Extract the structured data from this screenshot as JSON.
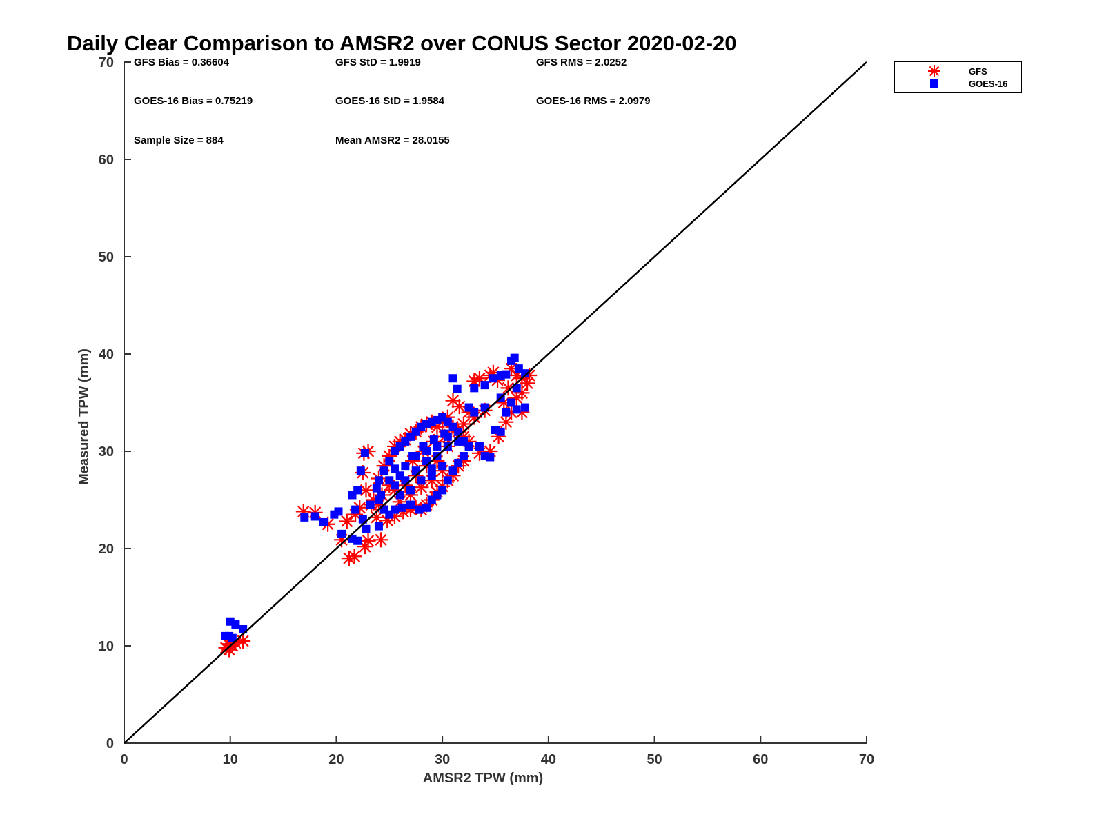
{
  "chart_data": {
    "type": "scatter",
    "title": "Daily Clear Comparison to AMSR2 over CONUS Sector 2020-02-20",
    "xlabel": "AMSR2 TPW (mm)",
    "ylabel": "Measured TPW (mm)",
    "xlim": [
      0,
      70
    ],
    "ylim": [
      0,
      70
    ],
    "xticks": [
      "0",
      "10",
      "20",
      "30",
      "40",
      "50",
      "60",
      "70"
    ],
    "yticks": [
      "0",
      "10",
      "20",
      "30",
      "40",
      "50",
      "60",
      "70"
    ],
    "grid": false,
    "legend_position": "outside-top-right",
    "reference_line": {
      "x": [
        0,
        70
      ],
      "y": [
        0,
        70
      ],
      "color": "#000000"
    },
    "annotations": {
      "gfs_bias": "GFS Bias = 0.36604",
      "gfs_std": "GFS StD = 1.9919",
      "gfs_rms": "GFS RMS = 2.0252",
      "goes_bias": "GOES-16 Bias = 0.75219",
      "goes_std": "GOES-16 StD = 1.9584",
      "goes_rms": "GOES-16 RMS = 2.0979",
      "sample_size": "Sample Size = 884",
      "mean_amsr2": "Mean AMSR2 = 28.0155"
    },
    "series": [
      {
        "name": "GFS",
        "marker": "asterisk",
        "color": "#ff0000",
        "points": [
          [
            9.6,
            9.8
          ],
          [
            9.9,
            9.6
          ],
          [
            10.2,
            10.0
          ],
          [
            10.5,
            10.3
          ],
          [
            11.2,
            10.5
          ],
          [
            9.8,
            10.2
          ],
          [
            16.9,
            23.8
          ],
          [
            18.0,
            23.7
          ],
          [
            19.2,
            22.5
          ],
          [
            20.5,
            20.9
          ],
          [
            21.2,
            19.0
          ],
          [
            21.7,
            19.2
          ],
          [
            22.7,
            20.2
          ],
          [
            23.0,
            20.8
          ],
          [
            24.2,
            20.9
          ],
          [
            21.0,
            22.8
          ],
          [
            21.8,
            23.5
          ],
          [
            22.2,
            24.2
          ],
          [
            22.5,
            27.8
          ],
          [
            22.6,
            29.8
          ],
          [
            23.0,
            30.0
          ],
          [
            22.8,
            26.0
          ],
          [
            23.3,
            24.5
          ],
          [
            23.8,
            23.2
          ],
          [
            24.3,
            25.5
          ],
          [
            24.8,
            22.9
          ],
          [
            25.5,
            23.3
          ],
          [
            26.3,
            23.8
          ],
          [
            27.0,
            24.0
          ],
          [
            27.5,
            24.2
          ],
          [
            28.0,
            24.0
          ],
          [
            28.5,
            24.5
          ],
          [
            29.0,
            25.0
          ],
          [
            29.5,
            25.8
          ],
          [
            30.0,
            26.4
          ],
          [
            30.5,
            27.0
          ],
          [
            31.0,
            27.5
          ],
          [
            31.5,
            28.5
          ],
          [
            32.0,
            29.0
          ],
          [
            24.0,
            27.2
          ],
          [
            24.5,
            28.5
          ],
          [
            25.0,
            29.5
          ],
          [
            25.5,
            30.5
          ],
          [
            26.0,
            31.0
          ],
          [
            26.5,
            31.2
          ],
          [
            27.0,
            31.8
          ],
          [
            27.5,
            32.0
          ],
          [
            28.0,
            32.5
          ],
          [
            28.5,
            32.8
          ],
          [
            29.0,
            33.0
          ],
          [
            29.5,
            32.5
          ],
          [
            30.0,
            33.0
          ],
          [
            30.5,
            33.5
          ],
          [
            31.0,
            32.5
          ],
          [
            31.5,
            32.0
          ],
          [
            32.0,
            31.5
          ],
          [
            32.5,
            31.0
          ],
          [
            31.0,
            35.2
          ],
          [
            31.6,
            34.6
          ],
          [
            32.5,
            34.0
          ],
          [
            33.0,
            37.2
          ],
          [
            33.5,
            37.5
          ],
          [
            34.5,
            37.8
          ],
          [
            34.8,
            38.1
          ],
          [
            35.2,
            37.3
          ],
          [
            33.5,
            29.8
          ],
          [
            34.5,
            30.0
          ],
          [
            35.3,
            31.5
          ],
          [
            36.0,
            33.0
          ],
          [
            36.5,
            34.0
          ],
          [
            37.5,
            34.0
          ],
          [
            37.0,
            35.5
          ],
          [
            37.5,
            36.0
          ],
          [
            38.0,
            37.0
          ],
          [
            36.5,
            38.5
          ],
          [
            37.0,
            37.8
          ],
          [
            37.5,
            37.5
          ],
          [
            38.2,
            37.8
          ],
          [
            35.8,
            35.0
          ],
          [
            36.2,
            36.5
          ],
          [
            34.0,
            34.2
          ],
          [
            33.0,
            33.5
          ],
          [
            32.0,
            32.8
          ],
          [
            25.5,
            26.0
          ],
          [
            26.5,
            26.5
          ],
          [
            27.5,
            27.5
          ],
          [
            28.5,
            28.5
          ],
          [
            29.5,
            29.0
          ],
          [
            30.5,
            30.5
          ],
          [
            26.0,
            24.8
          ],
          [
            27.0,
            25.5
          ],
          [
            28.0,
            26.3
          ],
          [
            29.0,
            27.0
          ],
          [
            30.0,
            28.0
          ],
          [
            27.2,
            29.0
          ],
          [
            28.2,
            30.0
          ],
          [
            29.2,
            31.0
          ],
          [
            30.2,
            31.5
          ],
          [
            25.0,
            26.5
          ],
          [
            24.0,
            24.5
          ],
          [
            23.5,
            25.0
          ]
        ]
      },
      {
        "name": "GOES-16",
        "marker": "square",
        "color": "#0000ff",
        "points": [
          [
            9.5,
            11.0
          ],
          [
            9.9,
            11.0
          ],
          [
            10.0,
            12.5
          ],
          [
            10.5,
            12.2
          ],
          [
            11.2,
            11.7
          ],
          [
            10.2,
            10.8
          ],
          [
            17.0,
            23.2
          ],
          [
            18.0,
            23.3
          ],
          [
            18.8,
            22.7
          ],
          [
            19.8,
            23.5
          ],
          [
            20.2,
            23.8
          ],
          [
            20.5,
            21.5
          ],
          [
            21.5,
            21.0
          ],
          [
            22.0,
            20.8
          ],
          [
            22.8,
            22.0
          ],
          [
            24.0,
            22.3
          ],
          [
            21.5,
            25.5
          ],
          [
            22.0,
            26.0
          ],
          [
            22.3,
            28.0
          ],
          [
            22.7,
            29.8
          ],
          [
            21.8,
            24.0
          ],
          [
            22.5,
            23.0
          ],
          [
            23.2,
            24.5
          ],
          [
            24.0,
            25.0
          ],
          [
            24.5,
            24.0
          ],
          [
            25.0,
            23.5
          ],
          [
            25.5,
            24.0
          ],
          [
            26.2,
            24.2
          ],
          [
            27.0,
            24.5
          ],
          [
            27.8,
            24.0
          ],
          [
            28.5,
            24.2
          ],
          [
            29.0,
            25.0
          ],
          [
            29.5,
            25.5
          ],
          [
            30.0,
            26.0
          ],
          [
            30.5,
            27.0
          ],
          [
            31.0,
            28.0
          ],
          [
            31.5,
            28.8
          ],
          [
            32.0,
            29.5
          ],
          [
            32.5,
            30.5
          ],
          [
            24.0,
            27.0
          ],
          [
            24.5,
            28.0
          ],
          [
            25.0,
            29.0
          ],
          [
            25.5,
            30.0
          ],
          [
            26.0,
            30.5
          ],
          [
            26.5,
            31.0
          ],
          [
            27.0,
            31.5
          ],
          [
            27.5,
            32.0
          ],
          [
            28.0,
            32.5
          ],
          [
            28.5,
            32.8
          ],
          [
            29.0,
            33.0
          ],
          [
            29.5,
            33.2
          ],
          [
            30.0,
            33.5
          ],
          [
            30.5,
            33.0
          ],
          [
            31.0,
            32.5
          ],
          [
            31.5,
            32.0
          ],
          [
            32.0,
            31.0
          ],
          [
            31.0,
            37.5
          ],
          [
            31.4,
            36.4
          ],
          [
            32.5,
            34.5
          ],
          [
            33.0,
            36.5
          ],
          [
            34.0,
            36.8
          ],
          [
            34.8,
            37.5
          ],
          [
            35.5,
            37.8
          ],
          [
            36.0,
            37.9
          ],
          [
            33.5,
            30.5
          ],
          [
            34.0,
            29.5
          ],
          [
            34.5,
            29.4
          ],
          [
            35.0,
            32.2
          ],
          [
            35.5,
            32.0
          ],
          [
            36.0,
            34.0
          ],
          [
            37.0,
            34.3
          ],
          [
            37.8,
            34.5
          ],
          [
            36.5,
            39.3
          ],
          [
            36.8,
            39.6
          ],
          [
            37.2,
            38.5
          ],
          [
            37.8,
            38.0
          ],
          [
            37.0,
            36.5
          ],
          [
            36.5,
            35.0
          ],
          [
            35.5,
            35.5
          ],
          [
            34.0,
            34.5
          ],
          [
            33.0,
            34.0
          ],
          [
            25.5,
            26.5
          ],
          [
            26.5,
            27.0
          ],
          [
            27.5,
            28.0
          ],
          [
            28.5,
            29.0
          ],
          [
            29.5,
            29.5
          ],
          [
            30.5,
            30.5
          ],
          [
            26.0,
            25.5
          ],
          [
            27.0,
            26.0
          ],
          [
            28.0,
            27.0
          ],
          [
            29.0,
            27.5
          ],
          [
            30.0,
            28.5
          ],
          [
            27.2,
            29.5
          ],
          [
            28.2,
            30.5
          ],
          [
            29.2,
            31.2
          ],
          [
            30.2,
            31.8
          ],
          [
            25.0,
            27.0
          ],
          [
            24.2,
            25.5
          ],
          [
            23.8,
            26.2
          ],
          [
            26.5,
            28.5
          ],
          [
            27.5,
            29.5
          ],
          [
            28.5,
            30.0
          ],
          [
            29.5,
            30.5
          ],
          [
            30.5,
            31.5
          ],
          [
            31.5,
            31.0
          ],
          [
            26.0,
            27.5
          ],
          [
            25.5,
            28.2
          ],
          [
            29.0,
            28.2
          ]
        ]
      }
    ]
  },
  "legend": {
    "gfs_label": "GFS",
    "goes_label": "GOES-16"
  }
}
